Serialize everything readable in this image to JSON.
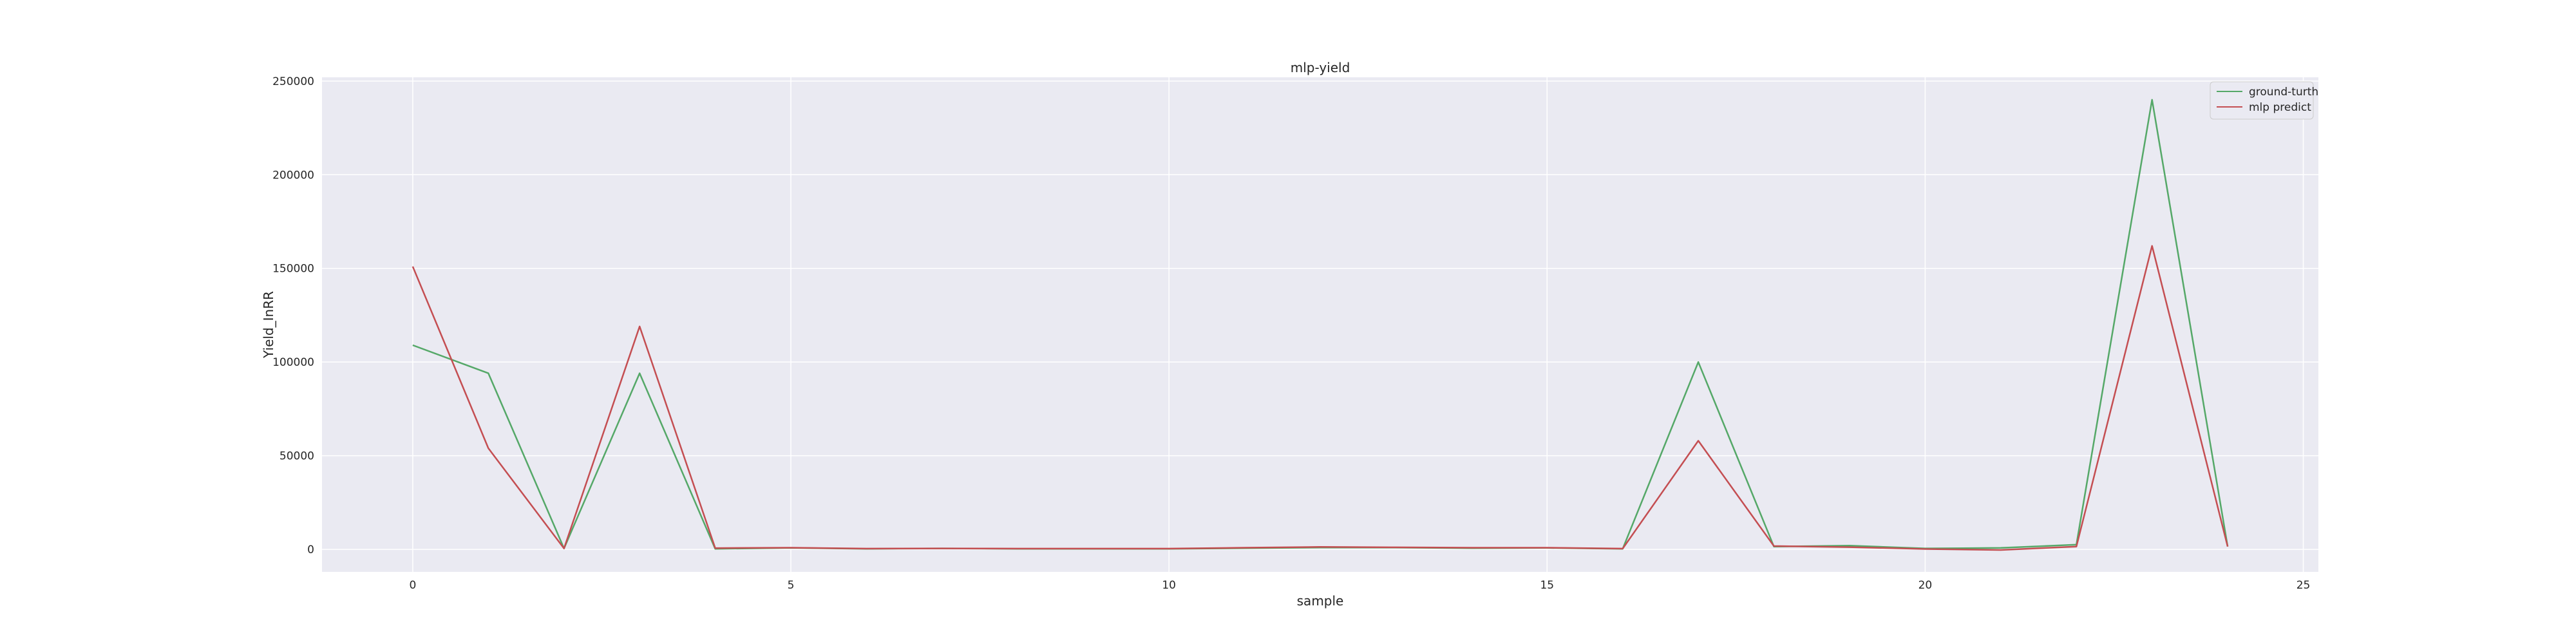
{
  "chart_data": {
    "type": "line",
    "title": "mlp-yield",
    "xlabel": "sample",
    "ylabel": "Yield_InRR",
    "xlim": [
      -1.2,
      25.2
    ],
    "ylim": [
      -12000,
      252000
    ],
    "x_ticks": [
      0,
      5,
      10,
      15,
      20,
      25
    ],
    "y_ticks": [
      0,
      50000,
      100000,
      150000,
      200000,
      250000
    ],
    "x_tick_labels": [
      "0",
      "5",
      "10",
      "15",
      "20",
      "25"
    ],
    "y_tick_labels": [
      "0",
      "50000",
      "100000",
      "150000",
      "200000",
      "250000"
    ],
    "grid": true,
    "legend_position": "top-right",
    "x": [
      0,
      1,
      2,
      3,
      4,
      5,
      6,
      7,
      8,
      9,
      10,
      11,
      12,
      13,
      14,
      15,
      16,
      17,
      18,
      19,
      20,
      21,
      22,
      23,
      24
    ],
    "series": [
      {
        "name": "ground-turth",
        "color": "#55a868",
        "values": [
          109000,
          94000,
          500,
          94000,
          300,
          800,
          300,
          500,
          300,
          300,
          300,
          600,
          1000,
          1000,
          600,
          800,
          300,
          100000,
          1500,
          2000,
          500,
          800,
          2500,
          240000,
          1500
        ]
      },
      {
        "name": "mlp predict",
        "color": "#c44e52",
        "values": [
          151000,
          54000,
          500,
          119000,
          700,
          900,
          400,
          500,
          400,
          400,
          400,
          900,
          1300,
          1100,
          900,
          900,
          400,
          58000,
          1800,
          1200,
          200,
          -300,
          1500,
          162000,
          1500
        ]
      }
    ]
  }
}
